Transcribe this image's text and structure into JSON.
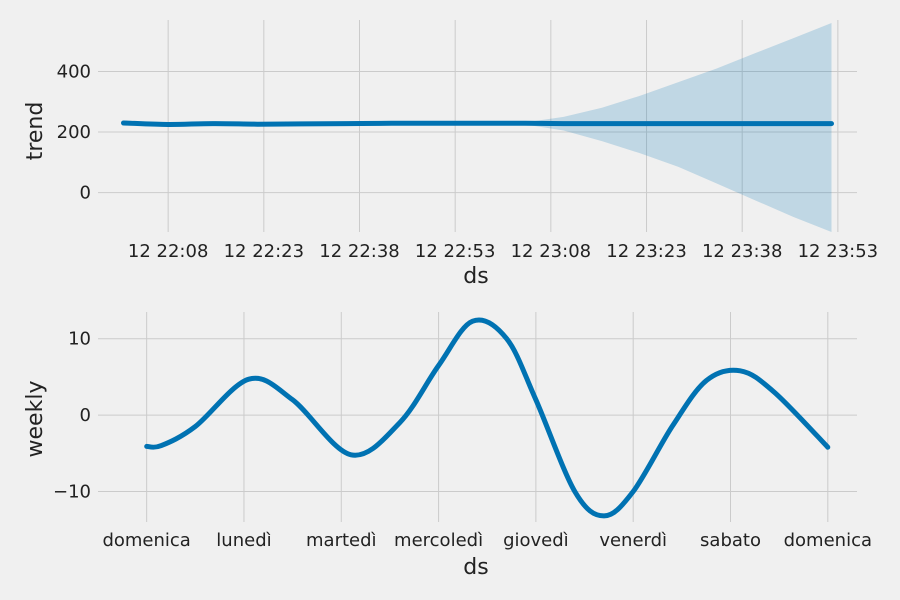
{
  "chart_data": [
    {
      "type": "line",
      "xlabel": "ds",
      "ylabel": "trend",
      "x_ticks": [
        "12 22:08",
        "12 22:23",
        "12 22:38",
        "12 22:53",
        "12 23:08",
        "12 23:23",
        "12 23:38",
        "12 23:53"
      ],
      "x_tick_minutes": [
        8,
        23,
        38,
        53,
        68,
        83,
        98,
        113
      ],
      "xlim_minutes": [
        -3,
        116
      ],
      "y_ticks": [
        0,
        200,
        400
      ],
      "ylim": [
        -130,
        570
      ],
      "grid": true,
      "colors": {
        "line": "#0072B2",
        "band": "#0072B2"
      },
      "x_minutes": [
        1,
        8,
        15,
        22,
        29,
        36,
        43,
        50,
        57,
        64,
        70,
        76,
        82,
        88,
        94,
        100,
        106,
        112
      ],
      "series": [
        {
          "values": [
            230,
            225,
            228,
            226,
            227,
            228,
            229,
            229,
            229,
            229,
            228,
            228,
            228,
            228,
            228,
            228,
            228,
            228
          ]
        }
      ],
      "uncertainty": {
        "upper": [
          230,
          225,
          228,
          226,
          227,
          228,
          229,
          229,
          229,
          232,
          250,
          280,
          320,
          365,
          410,
          460,
          510,
          560
        ],
        "lower": [
          230,
          225,
          228,
          226,
          227,
          228,
          229,
          229,
          229,
          225,
          205,
          170,
          130,
          85,
          30,
          -25,
          -80,
          -130
        ]
      }
    },
    {
      "type": "line",
      "xlabel": "ds",
      "ylabel": "weekly",
      "x_ticks": [
        "domenica",
        "lunedì",
        "martedì",
        "mercoledì",
        "giovedì",
        "venerdì",
        "sabato",
        "domenica"
      ],
      "xlim": [
        -0.5,
        7.3
      ],
      "y_ticks": [
        -10,
        0,
        10
      ],
      "y_tick_labels": [
        "−10",
        "0",
        "10"
      ],
      "ylim": [
        -14,
        13.5
      ],
      "grid": true,
      "colors": {
        "line": "#0072B2"
      },
      "x": [
        0,
        0.15,
        0.5,
        1.05,
        1.5,
        2.1,
        2.6,
        3.0,
        3.35,
        3.7,
        4.0,
        4.4,
        4.7,
        5.0,
        5.4,
        5.75,
        6.1,
        6.45,
        7.0
      ],
      "series": [
        {
          "values": [
            -4.1,
            -4.0,
            -1.5,
            4.7,
            2.0,
            -5.2,
            -1.0,
            6.5,
            12.3,
            10.0,
            2.0,
            -10.0,
            -13.2,
            -10.0,
            -1.5,
            4.5,
            5.8,
            3.0,
            -4.2
          ]
        }
      ]
    }
  ]
}
